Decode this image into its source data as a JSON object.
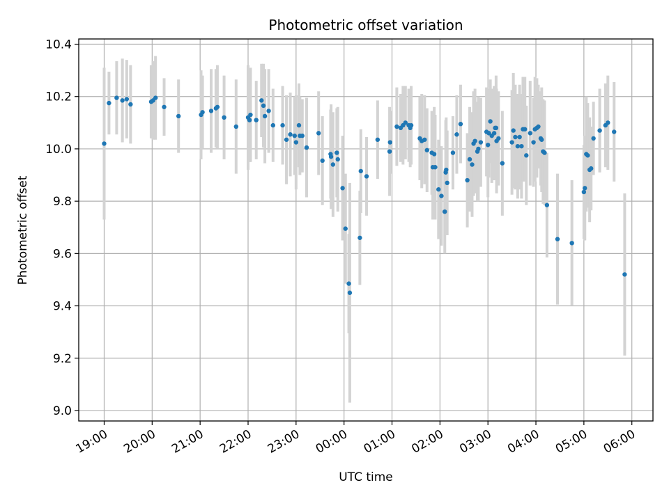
{
  "chart_data": {
    "type": "scatter",
    "title": "Photometric offset variation",
    "xlabel": "UTC time",
    "ylabel": "Photometric offset",
    "x_unit": "hours",
    "x_tick_values": [
      19,
      20,
      21,
      22,
      23,
      24,
      25,
      26,
      27,
      28,
      29,
      30
    ],
    "x_tick_labels": [
      "19:00",
      "20:00",
      "21:00",
      "22:00",
      "23:00",
      "00:00",
      "01:00",
      "02:00",
      "03:00",
      "04:00",
      "05:00",
      "06:00"
    ],
    "y_ticks": [
      9.0,
      9.2,
      9.4,
      9.6,
      9.8,
      10.0,
      10.2,
      10.4
    ],
    "y_tick_labels": [
      "9.0",
      "9.2",
      "9.4",
      "9.6",
      "9.8",
      "10.0",
      "10.2",
      "10.4"
    ],
    "xlim": [
      18.47,
      30.44
    ],
    "ylim": [
      8.96,
      10.42
    ],
    "grid": true,
    "point_color": "#1f77b4",
    "errorbar_color": "#d3d3d3",
    "series": [
      {
        "x": [
          19.0,
          19.1,
          19.26,
          19.38,
          19.47,
          19.55,
          19.98,
          20.02,
          20.07,
          20.25,
          20.55,
          21.02,
          21.05,
          21.23,
          21.33,
          21.36,
          21.5,
          21.75,
          22.0,
          22.03,
          22.05,
          22.17,
          22.28,
          22.32,
          22.35,
          22.43,
          22.52,
          22.72,
          22.8,
          22.88,
          22.97,
          23.0,
          23.06,
          23.08,
          23.13,
          23.22,
          23.47,
          23.55,
          23.72,
          23.73,
          23.77,
          23.85,
          23.87,
          23.97,
          24.03,
          24.1,
          24.12,
          24.33,
          24.35,
          24.47,
          24.7,
          24.95,
          24.96,
          25.1,
          25.18,
          25.23,
          25.28,
          25.35,
          25.38,
          25.4,
          25.58,
          25.62,
          25.68,
          25.73,
          25.83,
          25.85,
          25.88,
          25.9,
          25.97,
          26.03,
          26.1,
          26.12,
          26.13,
          26.15,
          26.27,
          26.35,
          26.43,
          26.57,
          26.62,
          26.67,
          26.7,
          26.73,
          26.78,
          26.8,
          26.85,
          26.97,
          27.0,
          27.02,
          27.05,
          27.08,
          27.13,
          27.15,
          27.17,
          27.18,
          27.22,
          27.3,
          27.5,
          27.53,
          27.57,
          27.62,
          27.66,
          27.7,
          27.73,
          27.77,
          27.8,
          27.88,
          27.95,
          27.98,
          28.02,
          28.05,
          28.1,
          28.12,
          28.15,
          28.18,
          28.23,
          28.45,
          28.75,
          29.0,
          29.02,
          29.05,
          29.08,
          29.12,
          29.15,
          29.2,
          29.33,
          29.45,
          29.5,
          29.63,
          29.85
        ],
        "y": [
          10.02,
          10.175,
          10.195,
          10.185,
          10.19,
          10.17,
          10.18,
          10.185,
          10.195,
          10.16,
          10.125,
          10.13,
          10.14,
          10.145,
          10.155,
          10.16,
          10.12,
          10.085,
          10.12,
          10.11,
          10.13,
          10.11,
          10.185,
          10.165,
          10.125,
          10.145,
          10.09,
          10.09,
          10.035,
          10.055,
          10.05,
          10.025,
          10.09,
          10.05,
          10.05,
          10.005,
          10.06,
          9.955,
          9.98,
          9.97,
          9.94,
          9.985,
          9.96,
          9.85,
          9.695,
          9.485,
          9.45,
          9.66,
          9.915,
          9.895,
          10.035,
          9.99,
          10.025,
          10.085,
          10.08,
          10.09,
          10.1,
          10.09,
          10.08,
          10.09,
          10.04,
          10.03,
          10.035,
          9.995,
          9.985,
          9.93,
          9.98,
          9.93,
          9.845,
          9.82,
          9.76,
          9.91,
          9.92,
          9.87,
          9.985,
          10.055,
          10.095,
          9.88,
          9.96,
          9.94,
          10.02,
          10.03,
          9.99,
          10.0,
          10.025,
          10.065,
          10.015,
          10.06,
          10.105,
          10.05,
          10.06,
          10.08,
          10.08,
          10.03,
          10.04,
          9.945,
          10.025,
          10.07,
          10.045,
          10.01,
          10.045,
          10.01,
          10.075,
          10.075,
          9.975,
          10.06,
          10.025,
          10.075,
          10.08,
          10.085,
          10.04,
          10.035,
          9.99,
          9.985,
          9.785,
          9.655,
          9.64,
          9.835,
          9.85,
          9.98,
          9.975,
          9.92,
          9.925,
          10.04,
          10.07,
          10.09,
          10.1,
          10.065,
          9.52
        ],
        "err": [
          0.29,
          0.12,
          0.14,
          0.16,
          0.15,
          0.15,
          0.14,
          0.15,
          0.16,
          0.11,
          0.14,
          0.17,
          0.14,
          0.16,
          0.15,
          0.16,
          0.16,
          0.18,
          0.2,
          0.16,
          0.18,
          0.15,
          0.14,
          0.16,
          0.18,
          0.16,
          0.14,
          0.15,
          0.17,
          0.16,
          0.15,
          0.18,
          0.16,
          0.15,
          0.14,
          0.19,
          0.16,
          0.17,
          0.17,
          0.2,
          0.2,
          0.17,
          0.2,
          0.2,
          0.21,
          0.19,
          0.42,
          0.18,
          0.16,
          0.15,
          0.15,
          0.17,
          0.12,
          0.15,
          0.13,
          0.15,
          0.14,
          0.14,
          0.15,
          0.15,
          0.16,
          0.18,
          0.17,
          0.16,
          0.16,
          0.2,
          0.18,
          0.2,
          0.19,
          0.19,
          0.16,
          0.2,
          0.2,
          0.2,
          0.14,
          0.15,
          0.15,
          0.18,
          0.2,
          0.2,
          0.2,
          0.2,
          0.19,
          0.2,
          0.17,
          0.17,
          0.2,
          0.17,
          0.16,
          0.18,
          0.18,
          0.16,
          0.2,
          0.2,
          0.18,
          0.2,
          0.2,
          0.22,
          0.2,
          0.2,
          0.2,
          0.2,
          0.2,
          0.2,
          0.19,
          0.2,
          0.17,
          0.2,
          0.19,
          0.16,
          0.18,
          0.2,
          0.2,
          0.2,
          0.2,
          0.25,
          0.24,
          0.18,
          0.2,
          0.22,
          0.2,
          0.2,
          0.16,
          0.14,
          0.16,
          0.16,
          0.18,
          0.19,
          0.31
        ]
      }
    ]
  }
}
